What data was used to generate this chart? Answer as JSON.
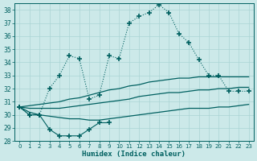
{
  "title": "",
  "xlabel": "Humidex (Indice chaleur)",
  "bg_color": "#cce9e9",
  "grid_color": "#aad4d4",
  "line_color": "#006060",
  "x_values": [
    0,
    1,
    2,
    3,
    4,
    5,
    6,
    7,
    8,
    9,
    10,
    11,
    12,
    13,
    14,
    15,
    16,
    17,
    18,
    19,
    20,
    21,
    22,
    23
  ],
  "curve_peak": [
    30.6,
    30.0,
    30.0,
    32.0,
    33.0,
    34.5,
    34.3,
    31.2,
    31.5,
    34.5,
    34.3,
    37.0,
    37.5,
    37.8,
    38.4,
    37.8,
    36.2,
    35.5,
    34.2,
    33.0,
    33.0,
    31.8,
    31.8,
    31.8
  ],
  "curve_dip": [
    30.6,
    30.0,
    30.0,
    28.9,
    28.4,
    28.4,
    28.4,
    28.9,
    29.4,
    29.4,
    null,
    null,
    null,
    null,
    null,
    null,
    null,
    null,
    null,
    null,
    null,
    null,
    null,
    null
  ],
  "line_upper": [
    30.6,
    30.7,
    30.8,
    30.9,
    31.0,
    31.2,
    31.3,
    31.5,
    31.7,
    31.9,
    32.0,
    32.2,
    32.3,
    32.5,
    32.6,
    32.7,
    32.8,
    32.8,
    32.9,
    32.9,
    32.9,
    32.9,
    32.9,
    32.9
  ],
  "line_mid": [
    30.6,
    30.5,
    30.5,
    30.5,
    30.5,
    30.6,
    30.7,
    30.8,
    30.9,
    31.0,
    31.1,
    31.2,
    31.4,
    31.5,
    31.6,
    31.7,
    31.7,
    31.8,
    31.9,
    31.9,
    32.0,
    32.0,
    32.1,
    32.1
  ],
  "line_lower": [
    30.6,
    30.2,
    30.0,
    29.9,
    29.8,
    29.7,
    29.7,
    29.6,
    29.6,
    29.7,
    29.8,
    29.9,
    30.0,
    30.1,
    30.2,
    30.3,
    30.4,
    30.5,
    30.5,
    30.5,
    30.6,
    30.6,
    30.7,
    30.8
  ],
  "ylim": [
    28,
    38.5
  ],
  "xlim": [
    -0.5,
    23.5
  ],
  "yticks": [
    28,
    29,
    30,
    31,
    32,
    33,
    34,
    35,
    36,
    37,
    38
  ],
  "xticks": [
    0,
    1,
    2,
    3,
    4,
    5,
    6,
    7,
    8,
    9,
    10,
    11,
    12,
    13,
    14,
    15,
    16,
    17,
    18,
    19,
    20,
    21,
    22,
    23
  ]
}
